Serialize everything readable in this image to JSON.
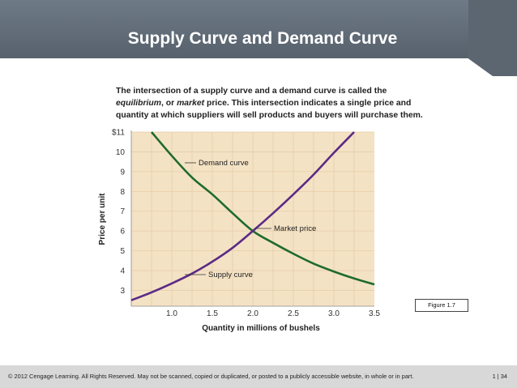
{
  "slide": {
    "title": "Supply Curve and Demand Curve",
    "figure_label": "Figure 1.7",
    "footer_text": "© 2012 Cengage Learning. All Rights Reserved. May not be scanned, copied or duplicated, or posted to a publicly accessible website, in whole or in part.",
    "page_number": "1 | 34"
  },
  "caption": {
    "part1": "The intersection of a supply curve and a demand curve is called the ",
    "em1": "equilibrium",
    "part2": ", or ",
    "em2": "market",
    "part3": " price. This intersection indicates a single price and quantity at which suppliers will sell products and buyers will purchase them."
  },
  "chart_data": {
    "type": "line",
    "xlabel": "Quantity in millions of bushels",
    "ylabel": "Price per unit",
    "xlim": [
      0.5,
      3.5
    ],
    "ylim": [
      2.2,
      11
    ],
    "x_ticks": [
      1.0,
      1.5,
      2.0,
      2.5,
      3.0,
      3.5
    ],
    "x_tick_labels": [
      "1.0",
      "1.5",
      "2.0",
      "2.5",
      "3.0",
      "3.5"
    ],
    "y_ticks": [
      3,
      4,
      5,
      6,
      7,
      8,
      9,
      10,
      11
    ],
    "y_tick_labels": [
      "3",
      "4",
      "5",
      "6",
      "7",
      "8",
      "9",
      "10",
      "$11"
    ],
    "grid": true,
    "series": [
      {
        "name": "Demand curve",
        "color": "#1e6b2e",
        "points": [
          [
            0.75,
            11.0
          ],
          [
            1.0,
            9.8
          ],
          [
            1.25,
            8.7
          ],
          [
            1.5,
            7.85
          ],
          [
            1.75,
            6.9
          ],
          [
            2.0,
            6.0
          ],
          [
            2.25,
            5.4
          ],
          [
            2.5,
            4.85
          ],
          [
            2.75,
            4.35
          ],
          [
            3.0,
            3.95
          ],
          [
            3.25,
            3.6
          ],
          [
            3.5,
            3.3
          ]
        ]
      },
      {
        "name": "Supply curve",
        "color": "#5a2a86",
        "points": [
          [
            0.5,
            2.5
          ],
          [
            0.75,
            2.9
          ],
          [
            1.0,
            3.35
          ],
          [
            1.25,
            3.85
          ],
          [
            1.5,
            4.45
          ],
          [
            1.75,
            5.15
          ],
          [
            2.0,
            6.0
          ],
          [
            2.25,
            6.9
          ],
          [
            2.5,
            7.85
          ],
          [
            2.75,
            8.85
          ],
          [
            3.0,
            9.95
          ],
          [
            3.25,
            11.0
          ]
        ]
      }
    ],
    "annotations": [
      {
        "text": "Demand curve",
        "x": 1.55,
        "y": 9.4
      },
      {
        "text": "Market price",
        "x": 2.0,
        "y": 6.0
      },
      {
        "text": "Supply curve",
        "x": 1.55,
        "y": 4.1
      }
    ]
  }
}
